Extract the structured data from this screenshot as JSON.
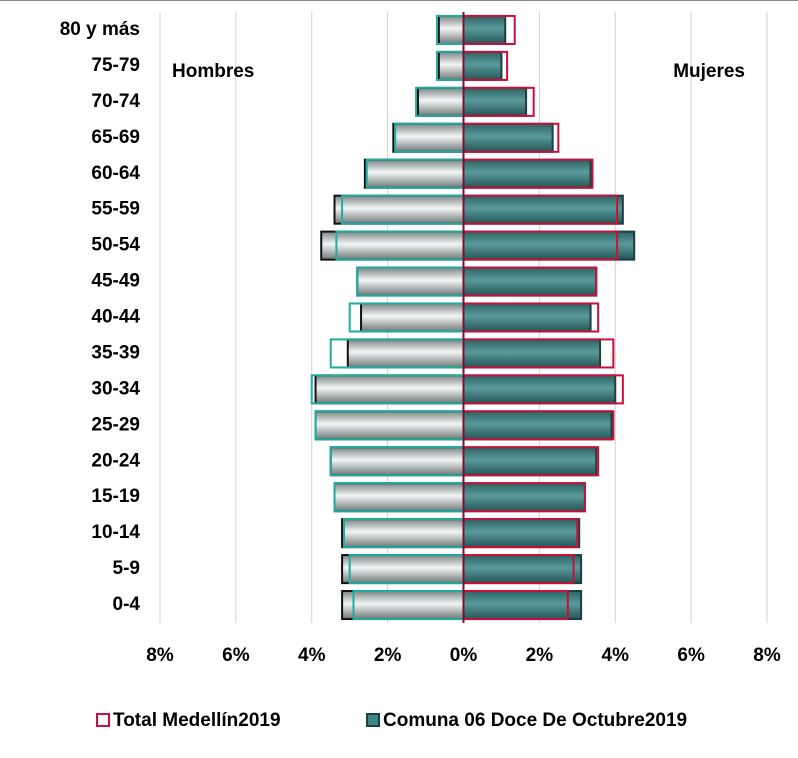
{
  "chart_data": {
    "type": "population_pyramid",
    "categories": [
      "0-4",
      "5-9",
      "10-14",
      "15-19",
      "20-24",
      "25-29",
      "30-34",
      "35-39",
      "40-44",
      "45-49",
      "50-54",
      "55-59",
      "60-64",
      "65-69",
      "70-74",
      "75-79",
      "80 y más"
    ],
    "left_label": "Hombres",
    "right_label": "Mujeres",
    "series": [
      {
        "name": "Comuna 06 Doce De Octubre2019",
        "style": "filled",
        "color": "#3f8586",
        "color_hombres": "#c9d1d1",
        "color_mujeres": "#3f8586",
        "hombres": [
          3.2,
          3.2,
          3.2,
          3.4,
          3.5,
          3.9,
          3.9,
          3.05,
          2.7,
          2.8,
          3.75,
          3.4,
          2.6,
          1.85,
          1.2,
          0.65,
          0.65
        ],
        "mujeres": [
          3.1,
          3.1,
          3.05,
          3.2,
          3.5,
          3.9,
          4.0,
          3.6,
          3.35,
          3.5,
          4.5,
          4.2,
          3.35,
          2.35,
          1.65,
          1.0,
          1.1
        ]
      },
      {
        "name": "Total Medellín2019",
        "style": "outline",
        "color": "#c8103a",
        "color_hombres": "#1fae9e",
        "color_mujeres": "#c8103a",
        "hombres": [
          2.9,
          3.0,
          3.15,
          3.4,
          3.5,
          3.9,
          4.0,
          3.5,
          3.0,
          2.8,
          3.35,
          3.2,
          2.55,
          1.8,
          1.25,
          0.7,
          0.7
        ],
        "mujeres": [
          2.75,
          2.9,
          3.0,
          3.2,
          3.55,
          3.95,
          4.2,
          3.95,
          3.55,
          3.5,
          4.05,
          4.05,
          3.4,
          2.5,
          1.85,
          1.15,
          1.35
        ]
      }
    ],
    "xlim": [
      -8,
      8
    ],
    "xticks": [
      {
        "value": -8,
        "label": "8%"
      },
      {
        "value": -6,
        "label": "6%"
      },
      {
        "value": -4,
        "label": "4%"
      },
      {
        "value": -2,
        "label": "2%"
      },
      {
        "value": 0,
        "label": "0%"
      },
      {
        "value": 2,
        "label": "2%"
      },
      {
        "value": 4,
        "label": "4%"
      },
      {
        "value": 6,
        "label": "6%"
      },
      {
        "value": 8,
        "label": "8%"
      }
    ],
    "grid": true,
    "legend": "bottom"
  }
}
